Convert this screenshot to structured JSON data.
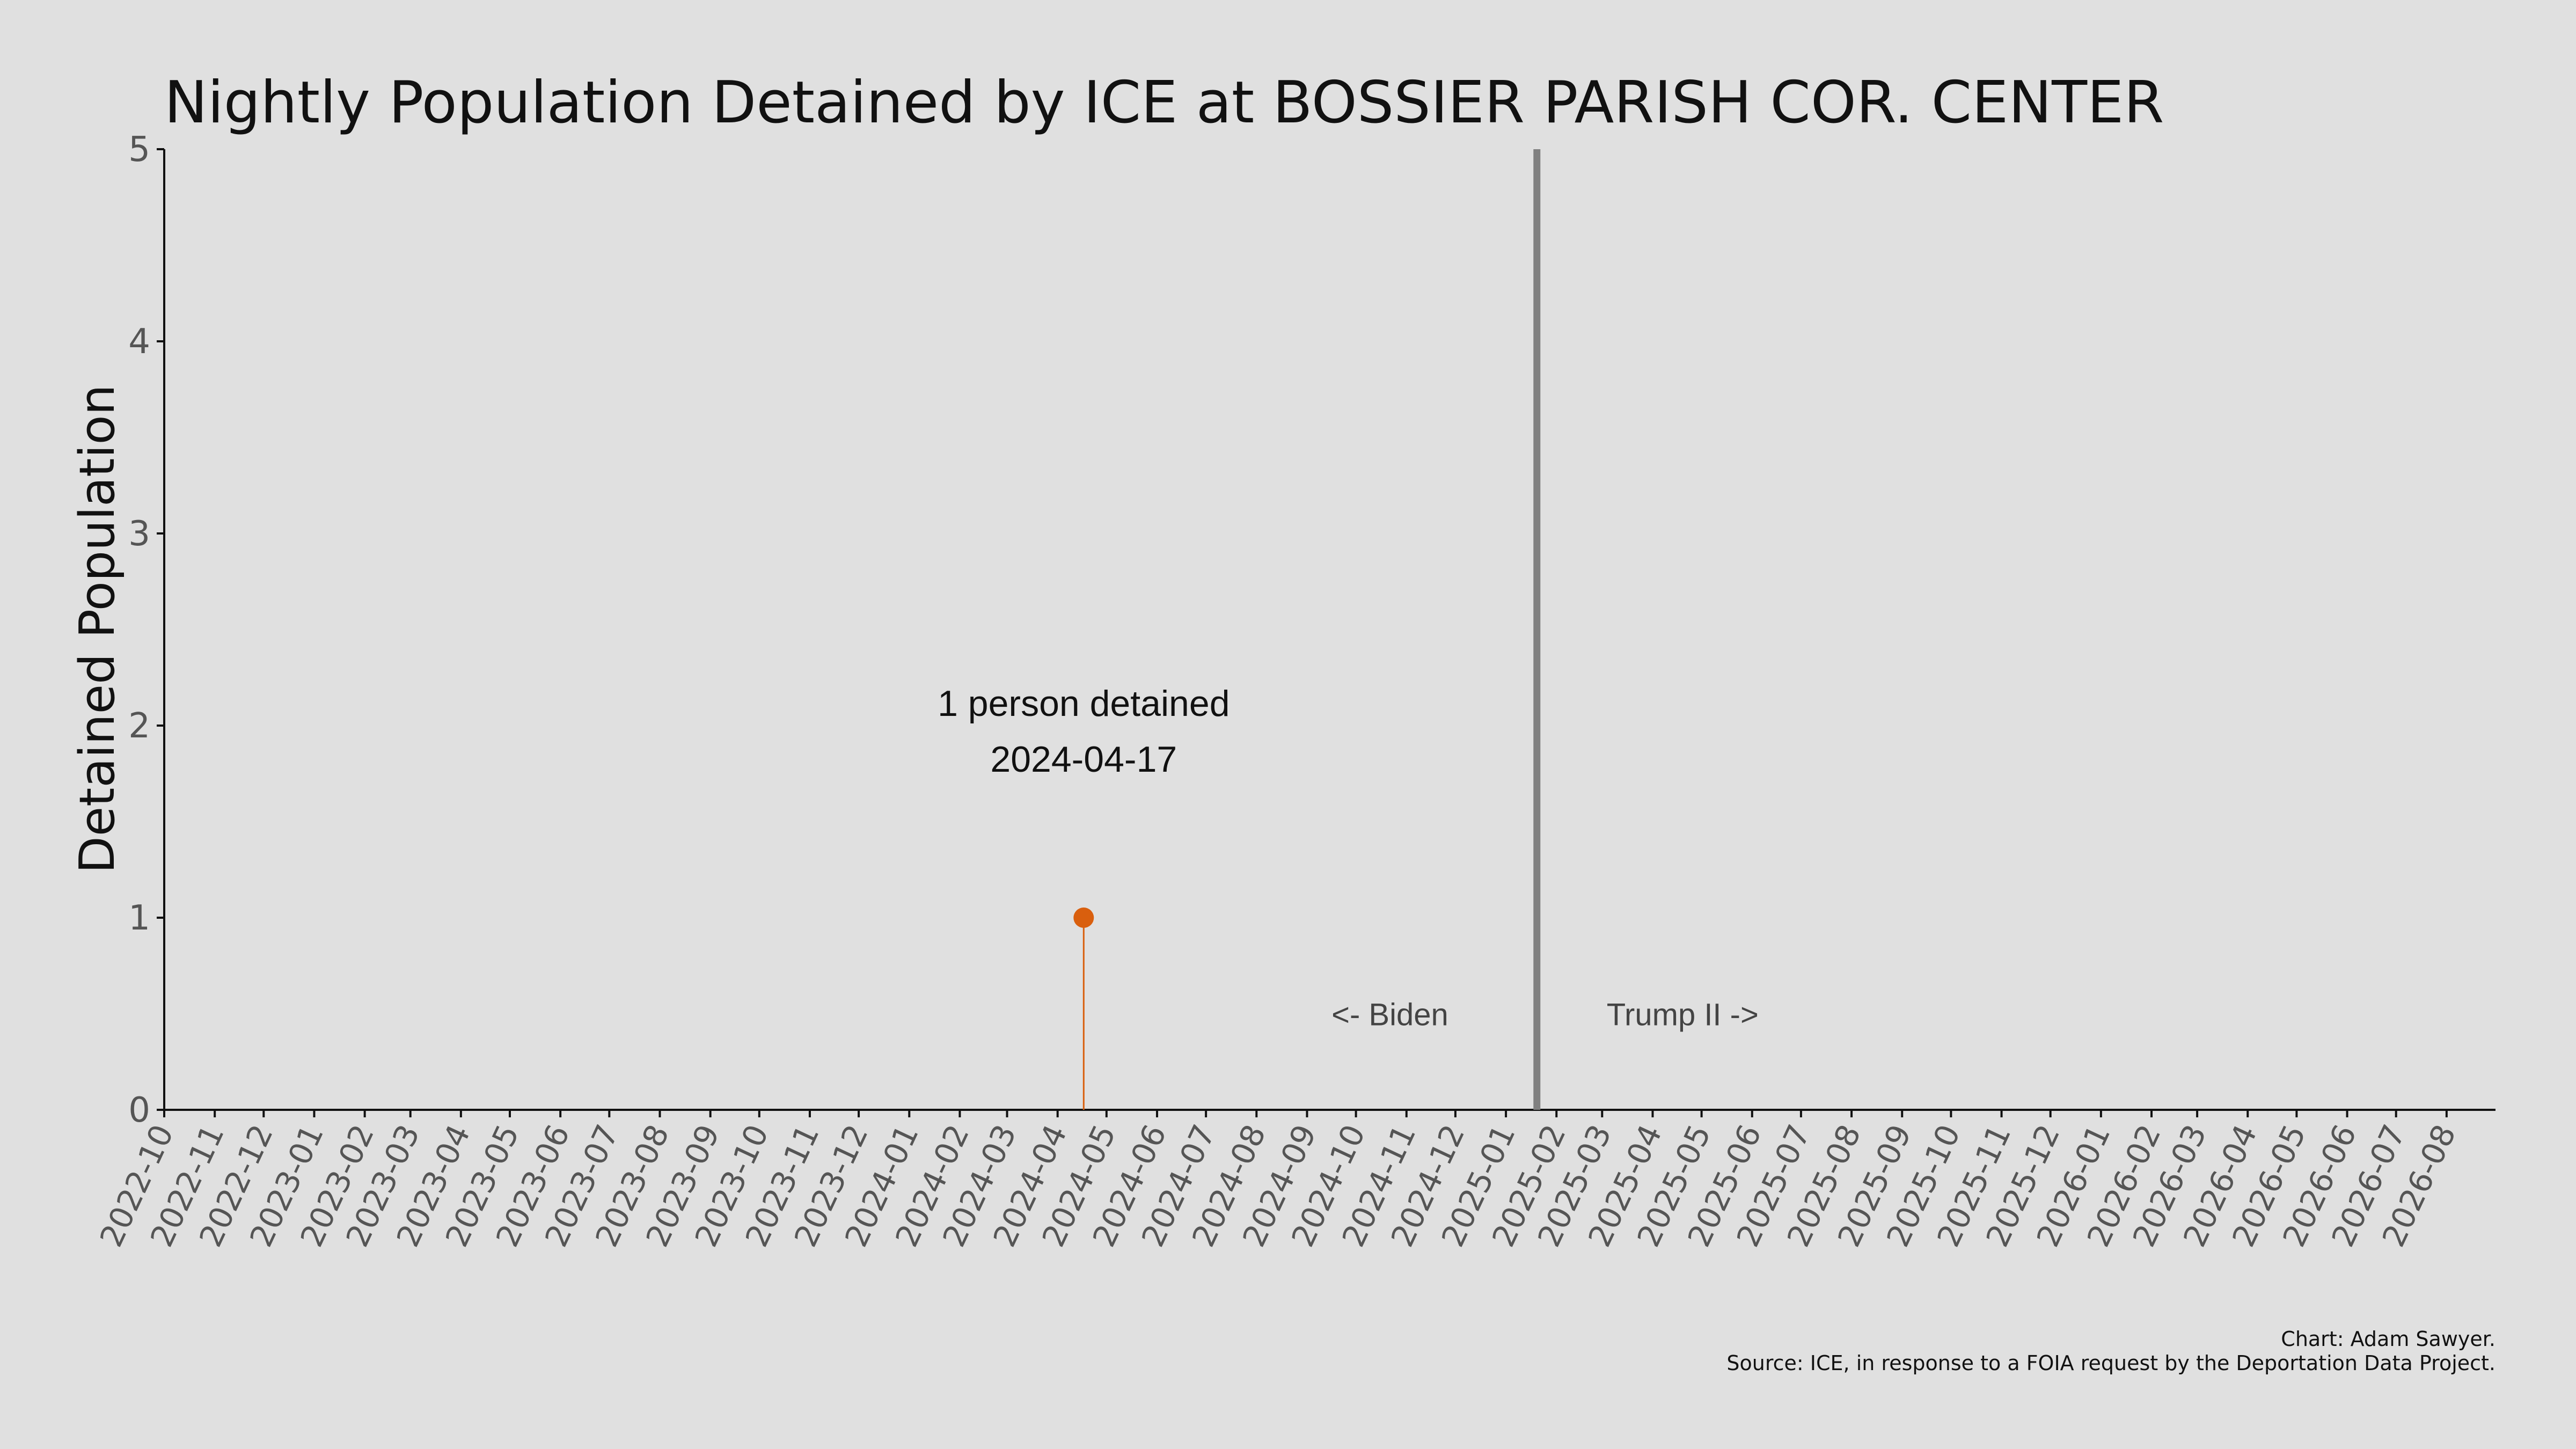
{
  "chart_data": {
    "type": "scatter",
    "title": "Nightly Population Detained by ICE at BOSSIER PARISH COR. CENTER",
    "ylabel": "Detained Population",
    "xlabel": "",
    "xlim": [
      "2022-10-01",
      "2026-08-31"
    ],
    "ylim": [
      0,
      5
    ],
    "yticks": [
      0,
      1,
      2,
      3,
      4,
      5
    ],
    "xticks": [
      "2022-10",
      "2022-11",
      "2022-12",
      "2023-01",
      "2023-02",
      "2023-03",
      "2023-04",
      "2023-05",
      "2023-06",
      "2023-07",
      "2023-08",
      "2023-09",
      "2023-10",
      "2023-11",
      "2023-12",
      "2024-01",
      "2024-02",
      "2024-03",
      "2024-04",
      "2024-05",
      "2024-06",
      "2024-07",
      "2024-08",
      "2024-09",
      "2024-10",
      "2024-11",
      "2024-12",
      "2025-01",
      "2025-02",
      "2025-03",
      "2025-04",
      "2025-05",
      "2025-06",
      "2025-07",
      "2025-08",
      "2025-09",
      "2025-10",
      "2025-11",
      "2025-12",
      "2026-01",
      "2026-02",
      "2026-03",
      "2026-04",
      "2026-05",
      "2026-06",
      "2026-07",
      "2026-08"
    ],
    "points": [
      {
        "x": "2024-04-17",
        "y": 1
      }
    ],
    "point_color": "#d95f0e",
    "divider": {
      "x": "2025-01-20",
      "color": "#808080"
    },
    "era_labels": {
      "left": "<- Biden",
      "right": "Trump II ->"
    },
    "annotation": {
      "line1": "1 person detained",
      "line2": "2024-04-17"
    },
    "grid": false,
    "credit": "Chart: Adam Sawyer.",
    "source": "Source: ICE, in response to a FOIA request by the Deportation Data Project."
  }
}
